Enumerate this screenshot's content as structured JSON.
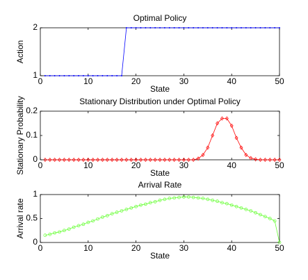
{
  "chart_data": [
    {
      "type": "line",
      "title": "Optimal Policy",
      "xlabel": "State",
      "ylabel": "Action",
      "x": [
        1,
        2,
        3,
        4,
        5,
        6,
        7,
        8,
        9,
        10,
        11,
        12,
        13,
        14,
        15,
        16,
        17,
        18,
        19,
        20,
        21,
        22,
        23,
        24,
        25,
        26,
        27,
        28,
        29,
        30,
        31,
        32,
        33,
        34,
        35,
        36,
        37,
        38,
        39,
        40,
        41,
        42,
        43,
        44,
        45,
        46,
        47,
        48,
        49,
        50
      ],
      "values": [
        1,
        1,
        1,
        1,
        1,
        1,
        1,
        1,
        1,
        1,
        1,
        1,
        1,
        1,
        1,
        1,
        1,
        2,
        2,
        2,
        2,
        2,
        2,
        2,
        2,
        2,
        2,
        2,
        2,
        2,
        2,
        2,
        2,
        2,
        2,
        2,
        2,
        2,
        2,
        2,
        2,
        2,
        2,
        2,
        2,
        2,
        2,
        2,
        2,
        2
      ],
      "color": "#0000ff",
      "marker": "point",
      "xlim": [
        0,
        50
      ],
      "xticks": [
        0,
        10,
        20,
        30,
        40,
        50
      ],
      "ylim": [
        1,
        2
      ],
      "yticks": [
        1,
        2
      ]
    },
    {
      "type": "line",
      "title": "Stationary Distribution under Optimal Policy",
      "xlabel": "State",
      "ylabel": "Stationary Probability",
      "x": [
        1,
        2,
        3,
        4,
        5,
        6,
        7,
        8,
        9,
        10,
        11,
        12,
        13,
        14,
        15,
        16,
        17,
        18,
        19,
        20,
        21,
        22,
        23,
        24,
        25,
        26,
        27,
        28,
        29,
        30,
        31,
        32,
        33,
        34,
        35,
        36,
        37,
        38,
        39,
        40,
        41,
        42,
        43,
        44,
        45,
        46,
        47,
        48,
        49,
        50
      ],
      "values": [
        0,
        0,
        0,
        0,
        0,
        0,
        0,
        0,
        0,
        0,
        0,
        0,
        0,
        0,
        0,
        0,
        0,
        0,
        0,
        0,
        0,
        0,
        0,
        0,
        0,
        0,
        0,
        0,
        0,
        0,
        0,
        0,
        0.005,
        0.02,
        0.05,
        0.1,
        0.15,
        0.17,
        0.17,
        0.14,
        0.09,
        0.05,
        0.02,
        0.007,
        0.002,
        0,
        0,
        0,
        0,
        0
      ],
      "color": "#ff0000",
      "marker": "diamond",
      "xlim": [
        0,
        50
      ],
      "xticks": [
        0,
        10,
        20,
        30,
        40,
        50
      ],
      "ylim": [
        0,
        0.2
      ],
      "yticks": [
        0,
        0.1,
        0.2
      ]
    },
    {
      "type": "line",
      "title": "Arrival Rate",
      "xlabel": "State",
      "ylabel": "Arrival rate",
      "x": [
        1,
        2,
        3,
        4,
        5,
        6,
        7,
        8,
        9,
        10,
        11,
        12,
        13,
        14,
        15,
        16,
        17,
        18,
        19,
        20,
        21,
        22,
        23,
        24,
        25,
        26,
        27,
        28,
        29,
        30,
        31,
        32,
        33,
        34,
        35,
        36,
        37,
        38,
        39,
        40,
        41,
        42,
        43,
        44,
        45,
        46,
        47,
        48,
        49,
        50
      ],
      "values": [
        0.15,
        0.17,
        0.2,
        0.22,
        0.25,
        0.28,
        0.32,
        0.35,
        0.38,
        0.42,
        0.45,
        0.49,
        0.53,
        0.56,
        0.6,
        0.63,
        0.66,
        0.69,
        0.72,
        0.75,
        0.78,
        0.8,
        0.83,
        0.85,
        0.88,
        0.9,
        0.92,
        0.93,
        0.94,
        0.95,
        0.95,
        0.94,
        0.93,
        0.92,
        0.9,
        0.88,
        0.86,
        0.83,
        0.81,
        0.78,
        0.75,
        0.72,
        0.69,
        0.66,
        0.62,
        0.58,
        0.54,
        0.5,
        0.45,
        0
      ],
      "color": "#66ff33",
      "marker": "circle",
      "xlim": [
        0,
        50
      ],
      "xticks": [
        0,
        10,
        20,
        30,
        40,
        50
      ],
      "ylim": [
        0,
        1
      ],
      "yticks": [
        0,
        0.5,
        1
      ]
    }
  ]
}
